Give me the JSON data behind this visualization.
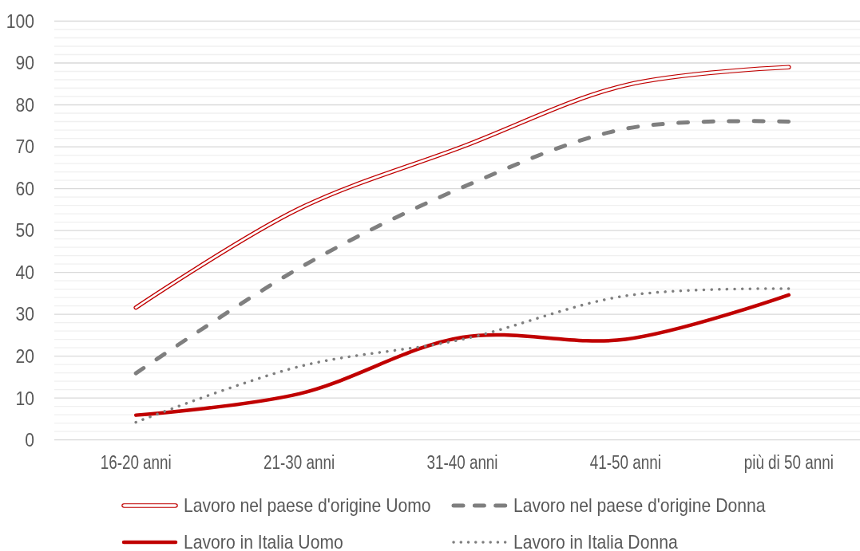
{
  "chart_data": {
    "type": "line",
    "categories": [
      "16-20 anni",
      "21-30 anni",
      "31-40 anni",
      "41-50 anni",
      "più di 50 anni"
    ],
    "series": [
      {
        "name": "Lavoro nel paese d'origine Uomo",
        "color": "#c00000",
        "line_style": "solid",
        "values": [
          31.6,
          55.2,
          70,
          84.7,
          89
        ]
      },
      {
        "name": "Lavoro nel paese d'origine Donna",
        "color": "#7f7f7f",
        "line_style": "dashed",
        "values": [
          15.9,
          41,
          60.3,
          74.3,
          76
        ]
      },
      {
        "name": "Lavoro in Italia Uomo",
        "color": "#c00000",
        "line_style": "solid",
        "values": [
          5.9,
          11,
          24.5,
          24,
          34.6
        ]
      },
      {
        "name": "Lavoro in Italia Donna",
        "color": "#7f7f7f",
        "line_style": "dotted",
        "values": [
          4.2,
          17.5,
          24,
          34.4,
          36.1
        ]
      }
    ],
    "ylim": [
      0,
      100
    ],
    "yticks": [
      0,
      {
        "value": 2,
        "label": null
      },
      {
        "value": 4,
        "label": null
      },
      {
        "value": 6,
        "label": null
      },
      {
        "value": 8,
        "label": null
      },
      10,
      {
        "value": 12,
        "label": null
      },
      {
        "value": 14,
        "label": null
      },
      {
        "value": 16,
        "label": null
      },
      {
        "value": 18,
        "label": null
      },
      20,
      {
        "value": 22,
        "label": null
      },
      {
        "value": 24,
        "label": null
      },
      {
        "value": 26,
        "label": null
      },
      {
        "value": 28,
        "label": null
      },
      30,
      {
        "value": 32,
        "label": null
      },
      {
        "value": 34,
        "label": null
      },
      {
        "value": 36,
        "label": null
      },
      {
        "value": 38,
        "label": null
      },
      40,
      {
        "value": 42,
        "label": null
      },
      {
        "value": 44,
        "label": null
      },
      {
        "value": 46,
        "label": null
      },
      {
        "value": 48,
        "label": null
      },
      50,
      {
        "value": 52,
        "label": null
      },
      {
        "value": 54,
        "label": null
      },
      {
        "value": 56,
        "label": null
      },
      {
        "value": 58,
        "label": null
      },
      60,
      {
        "value": 62,
        "label": null
      },
      {
        "value": 64,
        "label": null
      },
      {
        "value": 66,
        "label": null
      },
      {
        "value": 68,
        "label": null
      },
      70,
      {
        "value": 72,
        "label": null
      },
      {
        "value": 74,
        "label": null
      },
      {
        "value": 76,
        "label": null
      },
      {
        "value": 78,
        "label": null
      },
      80,
      {
        "value": 82,
        "label": null
      },
      {
        "value": 84,
        "label": null
      },
      {
        "value": 86,
        "label": null
      },
      {
        "value": 88,
        "label": null
      },
      90,
      {
        "value": 92,
        "label": null
      },
      {
        "value": 94,
        "label": null
      },
      {
        "value": 96,
        "label": null
      },
      {
        "value": 98,
        "label": null
      },
      100
    ],
    "grid": "y",
    "legend": "bottom"
  }
}
